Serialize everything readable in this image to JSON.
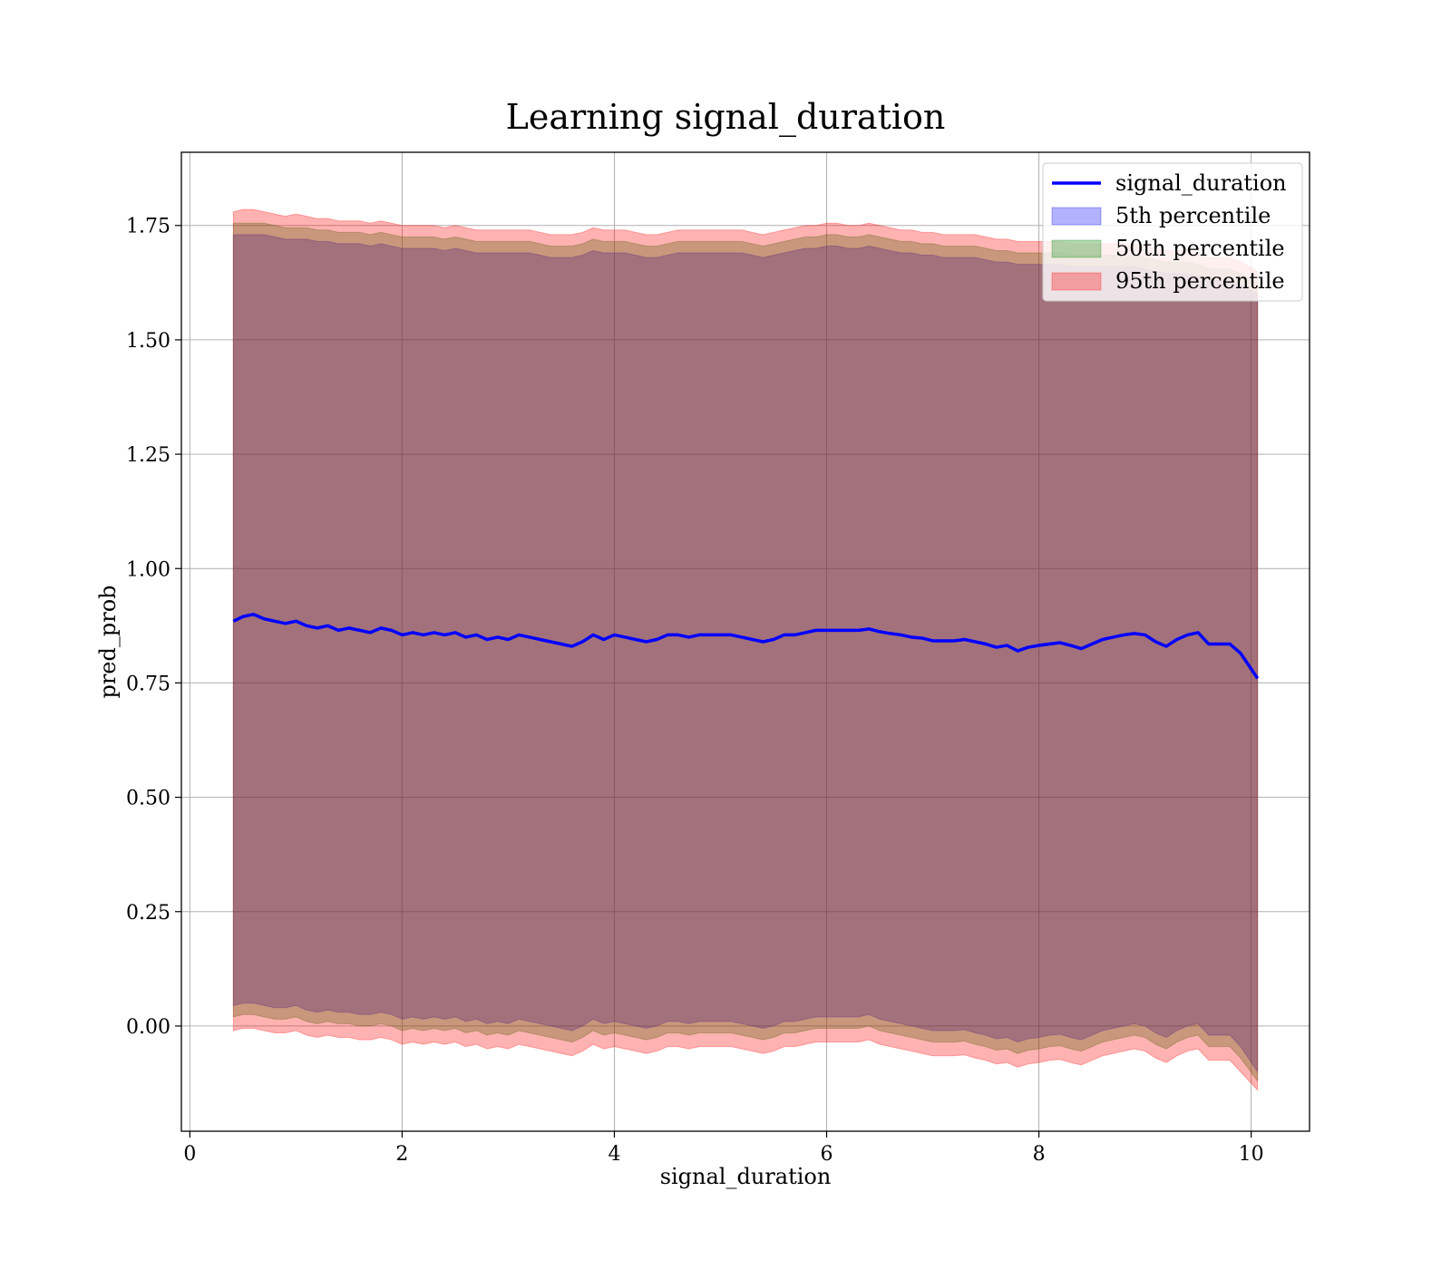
{
  "chart_data": {
    "type": "area",
    "title": "Learning signal_duration",
    "xlabel": "signal_duration",
    "ylabel": "pred_prob",
    "xlim": [
      -0.08,
      10.55
    ],
    "ylim": [
      -0.23,
      1.91
    ],
    "xticks": [
      0,
      2,
      4,
      6,
      8,
      10
    ],
    "xtick_labels": [
      "0",
      "2",
      "4",
      "6",
      "8",
      "10"
    ],
    "yticks": [
      0.0,
      0.25,
      0.5,
      0.75,
      1.0,
      1.25,
      1.5,
      1.75
    ],
    "ytick_labels": [
      "0.00",
      "0.25",
      "0.50",
      "0.75",
      "1.00",
      "1.25",
      "1.50",
      "1.75"
    ],
    "grid": true,
    "legend_position": "top-right",
    "x": [
      0.41,
      0.5,
      0.6,
      0.7,
      0.8,
      0.9,
      1.0,
      1.1,
      1.2,
      1.3,
      1.4,
      1.5,
      1.6,
      1.7,
      1.8,
      1.9,
      2.0,
      2.1,
      2.2,
      2.3,
      2.4,
      2.5,
      2.6,
      2.7,
      2.8,
      2.9,
      3.0,
      3.1,
      3.2,
      3.3,
      3.4,
      3.5,
      3.6,
      3.7,
      3.8,
      3.9,
      4.0,
      4.1,
      4.2,
      4.3,
      4.4,
      4.5,
      4.6,
      4.7,
      4.8,
      4.9,
      5.0,
      5.1,
      5.2,
      5.3,
      5.4,
      5.5,
      5.6,
      5.7,
      5.8,
      5.9,
      6.0,
      6.1,
      6.2,
      6.3,
      6.4,
      6.5,
      6.6,
      6.7,
      6.8,
      6.9,
      7.0,
      7.1,
      7.2,
      7.3,
      7.4,
      7.5,
      7.6,
      7.7,
      7.8,
      7.9,
      8.0,
      8.1,
      8.2,
      8.3,
      8.4,
      8.5,
      8.6,
      8.7,
      8.8,
      8.9,
      9.0,
      9.1,
      9.2,
      9.3,
      9.4,
      9.5,
      9.6,
      9.7,
      9.8,
      9.9,
      10.06
    ],
    "series": [
      {
        "name": "signal_duration",
        "kind": "line",
        "color": "#0000ff",
        "values": [
          0.885,
          0.895,
          0.9,
          0.89,
          0.885,
          0.88,
          0.885,
          0.875,
          0.87,
          0.875,
          0.865,
          0.87,
          0.865,
          0.86,
          0.87,
          0.865,
          0.855,
          0.86,
          0.855,
          0.86,
          0.855,
          0.86,
          0.85,
          0.855,
          0.845,
          0.85,
          0.845,
          0.855,
          0.85,
          0.845,
          0.84,
          0.835,
          0.83,
          0.84,
          0.855,
          0.845,
          0.855,
          0.85,
          0.845,
          0.84,
          0.845,
          0.855,
          0.855,
          0.85,
          0.855,
          0.855,
          0.855,
          0.855,
          0.85,
          0.845,
          0.84,
          0.845,
          0.855,
          0.855,
          0.86,
          0.865,
          0.865,
          0.865,
          0.865,
          0.865,
          0.868,
          0.862,
          0.858,
          0.855,
          0.85,
          0.848,
          0.842,
          0.842,
          0.842,
          0.845,
          0.84,
          0.835,
          0.828,
          0.832,
          0.82,
          0.828,
          0.832,
          0.835,
          0.838,
          0.832,
          0.825,
          0.835,
          0.845,
          0.85,
          0.855,
          0.858,
          0.855,
          0.84,
          0.83,
          0.845,
          0.855,
          0.86,
          0.835,
          0.835,
          0.835,
          0.815,
          0.76
        ]
      },
      {
        "name": "5th percentile",
        "kind": "band",
        "color": "#0000ff",
        "upper": [
          1.73,
          1.73,
          1.73,
          1.73,
          1.725,
          1.72,
          1.72,
          1.72,
          1.715,
          1.715,
          1.71,
          1.71,
          1.71,
          1.705,
          1.71,
          1.705,
          1.7,
          1.7,
          1.7,
          1.7,
          1.695,
          1.7,
          1.695,
          1.69,
          1.69,
          1.69,
          1.69,
          1.69,
          1.69,
          1.685,
          1.68,
          1.68,
          1.68,
          1.685,
          1.695,
          1.69,
          1.69,
          1.69,
          1.685,
          1.68,
          1.68,
          1.685,
          1.69,
          1.69,
          1.69,
          1.69,
          1.69,
          1.69,
          1.69,
          1.685,
          1.68,
          1.685,
          1.69,
          1.695,
          1.7,
          1.7,
          1.705,
          1.705,
          1.7,
          1.7,
          1.705,
          1.7,
          1.695,
          1.69,
          1.69,
          1.685,
          1.685,
          1.68,
          1.68,
          1.68,
          1.68,
          1.675,
          1.67,
          1.67,
          1.665,
          1.665,
          1.665,
          1.665,
          1.665,
          1.66,
          1.66,
          1.66,
          1.66,
          1.66,
          1.66,
          1.66,
          1.655,
          1.65,
          1.645,
          1.645,
          1.645,
          1.64,
          1.63,
          1.63,
          1.63,
          1.62,
          1.6
        ],
        "lower": [
          0.045,
          0.05,
          0.05,
          0.045,
          0.04,
          0.04,
          0.045,
          0.035,
          0.03,
          0.035,
          0.03,
          0.03,
          0.025,
          0.025,
          0.03,
          0.025,
          0.015,
          0.02,
          0.015,
          0.02,
          0.015,
          0.02,
          0.01,
          0.015,
          0.005,
          0.01,
          0.005,
          0.015,
          0.01,
          0.005,
          0.0,
          -0.005,
          -0.01,
          0.0,
          0.015,
          0.005,
          0.01,
          0.005,
          0.0,
          -0.005,
          0.0,
          0.01,
          0.01,
          0.005,
          0.01,
          0.01,
          0.01,
          0.01,
          0.005,
          0.0,
          -0.005,
          0.0,
          0.01,
          0.01,
          0.015,
          0.02,
          0.02,
          0.02,
          0.02,
          0.02,
          0.025,
          0.015,
          0.01,
          0.005,
          0.0,
          -0.005,
          -0.01,
          -0.01,
          -0.01,
          -0.008,
          -0.015,
          -0.02,
          -0.028,
          -0.025,
          -0.035,
          -0.028,
          -0.025,
          -0.02,
          -0.018,
          -0.025,
          -0.03,
          -0.02,
          -0.01,
          -0.005,
          0.0,
          0.005,
          0.0,
          -0.015,
          -0.025,
          -0.01,
          0.0,
          0.005,
          -0.02,
          -0.02,
          -0.02,
          -0.045,
          -0.1
        ]
      },
      {
        "name": "50th percentile",
        "kind": "band",
        "color": "#008000",
        "upper": [
          1.755,
          1.755,
          1.755,
          1.755,
          1.75,
          1.745,
          1.745,
          1.745,
          1.74,
          1.74,
          1.735,
          1.735,
          1.735,
          1.73,
          1.735,
          1.73,
          1.725,
          1.725,
          1.725,
          1.725,
          1.72,
          1.725,
          1.72,
          1.715,
          1.715,
          1.715,
          1.715,
          1.715,
          1.715,
          1.71,
          1.705,
          1.705,
          1.705,
          1.71,
          1.72,
          1.715,
          1.715,
          1.715,
          1.71,
          1.705,
          1.705,
          1.71,
          1.715,
          1.715,
          1.715,
          1.715,
          1.715,
          1.715,
          1.715,
          1.71,
          1.705,
          1.71,
          1.715,
          1.72,
          1.725,
          1.725,
          1.73,
          1.73,
          1.725,
          1.725,
          1.73,
          1.725,
          1.72,
          1.715,
          1.715,
          1.71,
          1.71,
          1.705,
          1.705,
          1.705,
          1.705,
          1.7,
          1.695,
          1.695,
          1.69,
          1.69,
          1.69,
          1.69,
          1.69,
          1.685,
          1.685,
          1.685,
          1.685,
          1.685,
          1.685,
          1.685,
          1.68,
          1.675,
          1.67,
          1.67,
          1.67,
          1.665,
          1.655,
          1.655,
          1.655,
          1.645,
          1.625
        ],
        "lower": [
          0.02,
          0.025,
          0.025,
          0.02,
          0.015,
          0.015,
          0.02,
          0.01,
          0.005,
          0.01,
          0.005,
          0.005,
          0.0,
          0.0,
          0.005,
          0.0,
          -0.01,
          -0.005,
          -0.01,
          -0.005,
          -0.01,
          -0.005,
          -0.015,
          -0.01,
          -0.02,
          -0.015,
          -0.02,
          -0.01,
          -0.015,
          -0.02,
          -0.025,
          -0.03,
          -0.035,
          -0.025,
          -0.01,
          -0.02,
          -0.015,
          -0.02,
          -0.025,
          -0.03,
          -0.025,
          -0.015,
          -0.015,
          -0.02,
          -0.015,
          -0.015,
          -0.015,
          -0.015,
          -0.02,
          -0.025,
          -0.03,
          -0.025,
          -0.015,
          -0.015,
          -0.01,
          -0.005,
          -0.005,
          -0.005,
          -0.005,
          -0.005,
          0.0,
          -0.01,
          -0.015,
          -0.02,
          -0.025,
          -0.03,
          -0.035,
          -0.035,
          -0.035,
          -0.033,
          -0.04,
          -0.045,
          -0.053,
          -0.05,
          -0.06,
          -0.053,
          -0.05,
          -0.045,
          -0.043,
          -0.05,
          -0.055,
          -0.045,
          -0.035,
          -0.03,
          -0.025,
          -0.02,
          -0.025,
          -0.04,
          -0.05,
          -0.035,
          -0.025,
          -0.02,
          -0.045,
          -0.045,
          -0.045,
          -0.07,
          -0.12
        ]
      },
      {
        "name": "95th percentile",
        "kind": "band",
        "color": "#ff0000",
        "upper": [
          1.78,
          1.785,
          1.785,
          1.78,
          1.775,
          1.77,
          1.775,
          1.77,
          1.765,
          1.765,
          1.76,
          1.76,
          1.76,
          1.755,
          1.76,
          1.755,
          1.75,
          1.75,
          1.75,
          1.75,
          1.745,
          1.75,
          1.745,
          1.74,
          1.74,
          1.74,
          1.74,
          1.74,
          1.74,
          1.735,
          1.73,
          1.73,
          1.73,
          1.735,
          1.745,
          1.74,
          1.74,
          1.74,
          1.735,
          1.73,
          1.73,
          1.735,
          1.74,
          1.74,
          1.74,
          1.74,
          1.74,
          1.74,
          1.74,
          1.735,
          1.73,
          1.735,
          1.74,
          1.745,
          1.75,
          1.75,
          1.755,
          1.755,
          1.75,
          1.75,
          1.755,
          1.75,
          1.745,
          1.74,
          1.74,
          1.735,
          1.735,
          1.73,
          1.73,
          1.73,
          1.73,
          1.725,
          1.72,
          1.72,
          1.715,
          1.715,
          1.715,
          1.715,
          1.715,
          1.71,
          1.71,
          1.71,
          1.71,
          1.71,
          1.71,
          1.71,
          1.705,
          1.7,
          1.695,
          1.695,
          1.695,
          1.69,
          1.68,
          1.68,
          1.68,
          1.67,
          1.65
        ],
        "lower": [
          -0.01,
          -0.005,
          -0.005,
          -0.01,
          -0.015,
          -0.015,
          -0.01,
          -0.02,
          -0.025,
          -0.02,
          -0.025,
          -0.025,
          -0.03,
          -0.03,
          -0.025,
          -0.03,
          -0.04,
          -0.035,
          -0.04,
          -0.035,
          -0.04,
          -0.035,
          -0.045,
          -0.04,
          -0.05,
          -0.045,
          -0.05,
          -0.04,
          -0.045,
          -0.05,
          -0.055,
          -0.06,
          -0.065,
          -0.055,
          -0.04,
          -0.05,
          -0.045,
          -0.05,
          -0.055,
          -0.06,
          -0.055,
          -0.045,
          -0.045,
          -0.05,
          -0.045,
          -0.045,
          -0.045,
          -0.045,
          -0.05,
          -0.055,
          -0.06,
          -0.055,
          -0.045,
          -0.045,
          -0.04,
          -0.035,
          -0.035,
          -0.035,
          -0.035,
          -0.035,
          -0.03,
          -0.04,
          -0.045,
          -0.05,
          -0.055,
          -0.06,
          -0.065,
          -0.065,
          -0.065,
          -0.063,
          -0.07,
          -0.075,
          -0.083,
          -0.08,
          -0.09,
          -0.083,
          -0.08,
          -0.075,
          -0.073,
          -0.08,
          -0.085,
          -0.075,
          -0.065,
          -0.06,
          -0.055,
          -0.05,
          -0.055,
          -0.07,
          -0.08,
          -0.065,
          -0.055,
          -0.05,
          -0.075,
          -0.075,
          -0.075,
          -0.1,
          -0.14
        ]
      }
    ]
  }
}
